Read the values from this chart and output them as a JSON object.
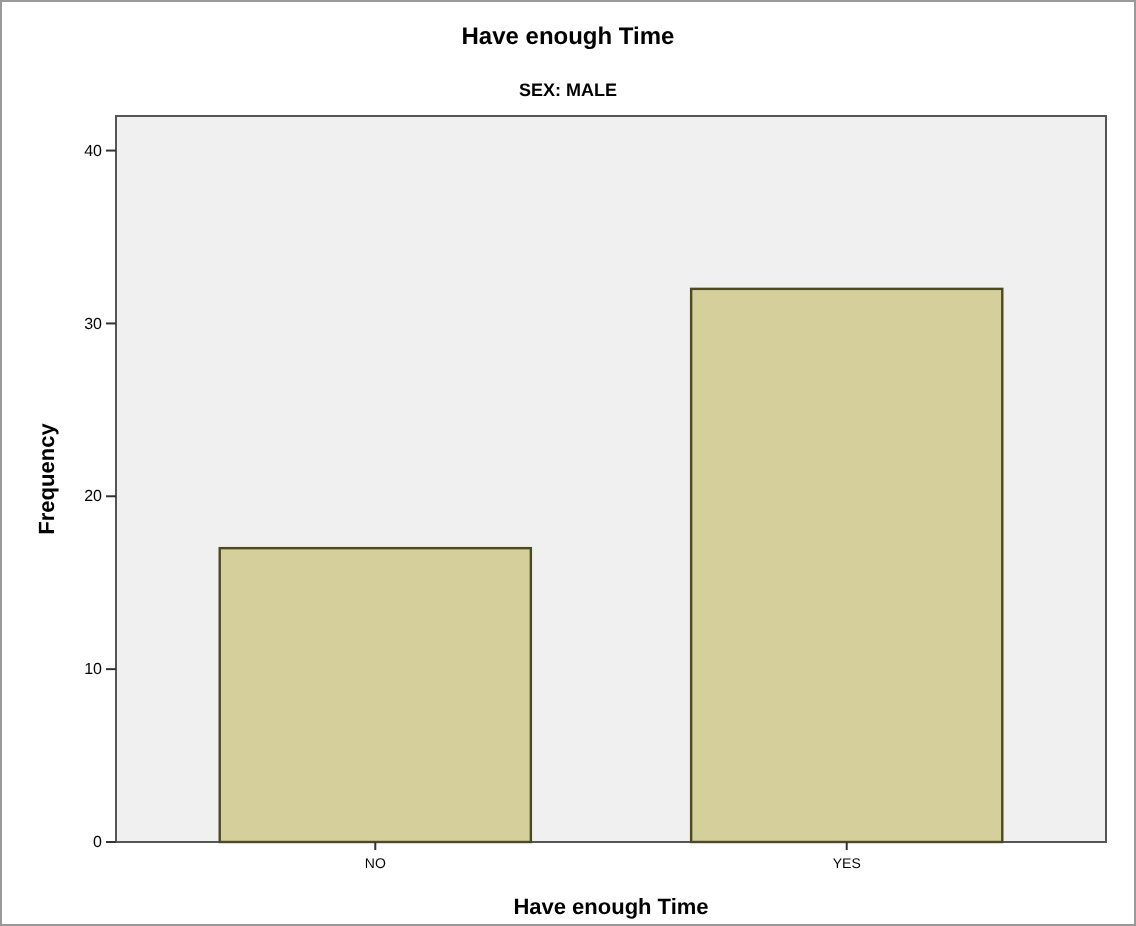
{
  "chart_data": {
    "type": "bar",
    "title": "Have enough Time",
    "subtitle": "SEX: MALE",
    "xlabel": "Have enough Time",
    "ylabel": "Frequency",
    "categories": [
      "NO",
      "YES"
    ],
    "values": [
      17,
      32
    ],
    "color": "#d4cf9b",
    "ylim": [
      0,
      42
    ],
    "yticks": [
      0,
      10,
      20,
      30,
      40
    ],
    "grid": false
  }
}
